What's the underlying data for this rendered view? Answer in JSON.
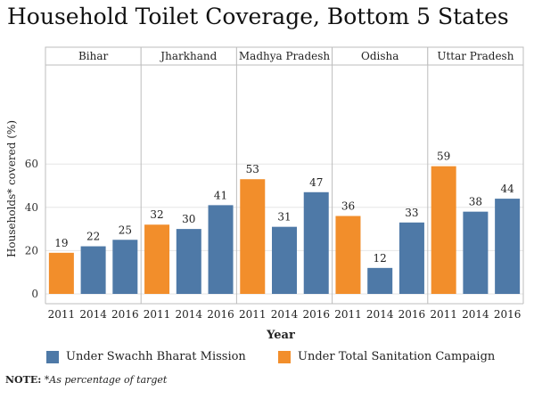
{
  "title": "Household Toilet Coverage, Bottom 5 States",
  "chart_data": {
    "type": "bar",
    "title": "Household Toilet Coverage, Bottom 5 States",
    "xlabel": "Year",
    "ylabel": "Households* covered (%)",
    "ylim": [
      0,
      65
    ],
    "yticks": [
      0,
      20,
      40,
      60
    ],
    "grid": "horizontal gridlines",
    "panels": [
      {
        "state": "Bihar",
        "years": [
          "2011",
          "2014",
          "2016"
        ],
        "values": [
          19,
          22,
          25
        ]
      },
      {
        "state": "Jharkhand",
        "years": [
          "2011",
          "2014",
          "2016"
        ],
        "values": [
          32,
          30,
          41
        ]
      },
      {
        "state": "Madhya Pradesh",
        "years": [
          "2011",
          "2014",
          "2016"
        ],
        "values": [
          53,
          31,
          47
        ]
      },
      {
        "state": "Odisha",
        "years": [
          "2011",
          "2014",
          "2016"
        ],
        "values": [
          36,
          12,
          33
        ]
      },
      {
        "state": "Uttar Pradesh",
        "years": [
          "2011",
          "2014",
          "2016"
        ],
        "values": [
          59,
          38,
          44
        ]
      }
    ],
    "series": [
      {
        "name": "Under Swachh Bharat Mission",
        "years": [
          "2014",
          "2016"
        ],
        "color": "#4e79a7"
      },
      {
        "name": "Under Total Sanitation Campaign",
        "years": [
          "2011"
        ],
        "color": "#f28e2b"
      }
    ],
    "legend_placement": "bottom"
  },
  "legend": {
    "sbm_label": "Under Swachh Bharat Mission",
    "tsc_label": "Under Total Sanitation Campaign"
  },
  "note": {
    "label": "NOTE:",
    "text": "*As percentage of target"
  }
}
